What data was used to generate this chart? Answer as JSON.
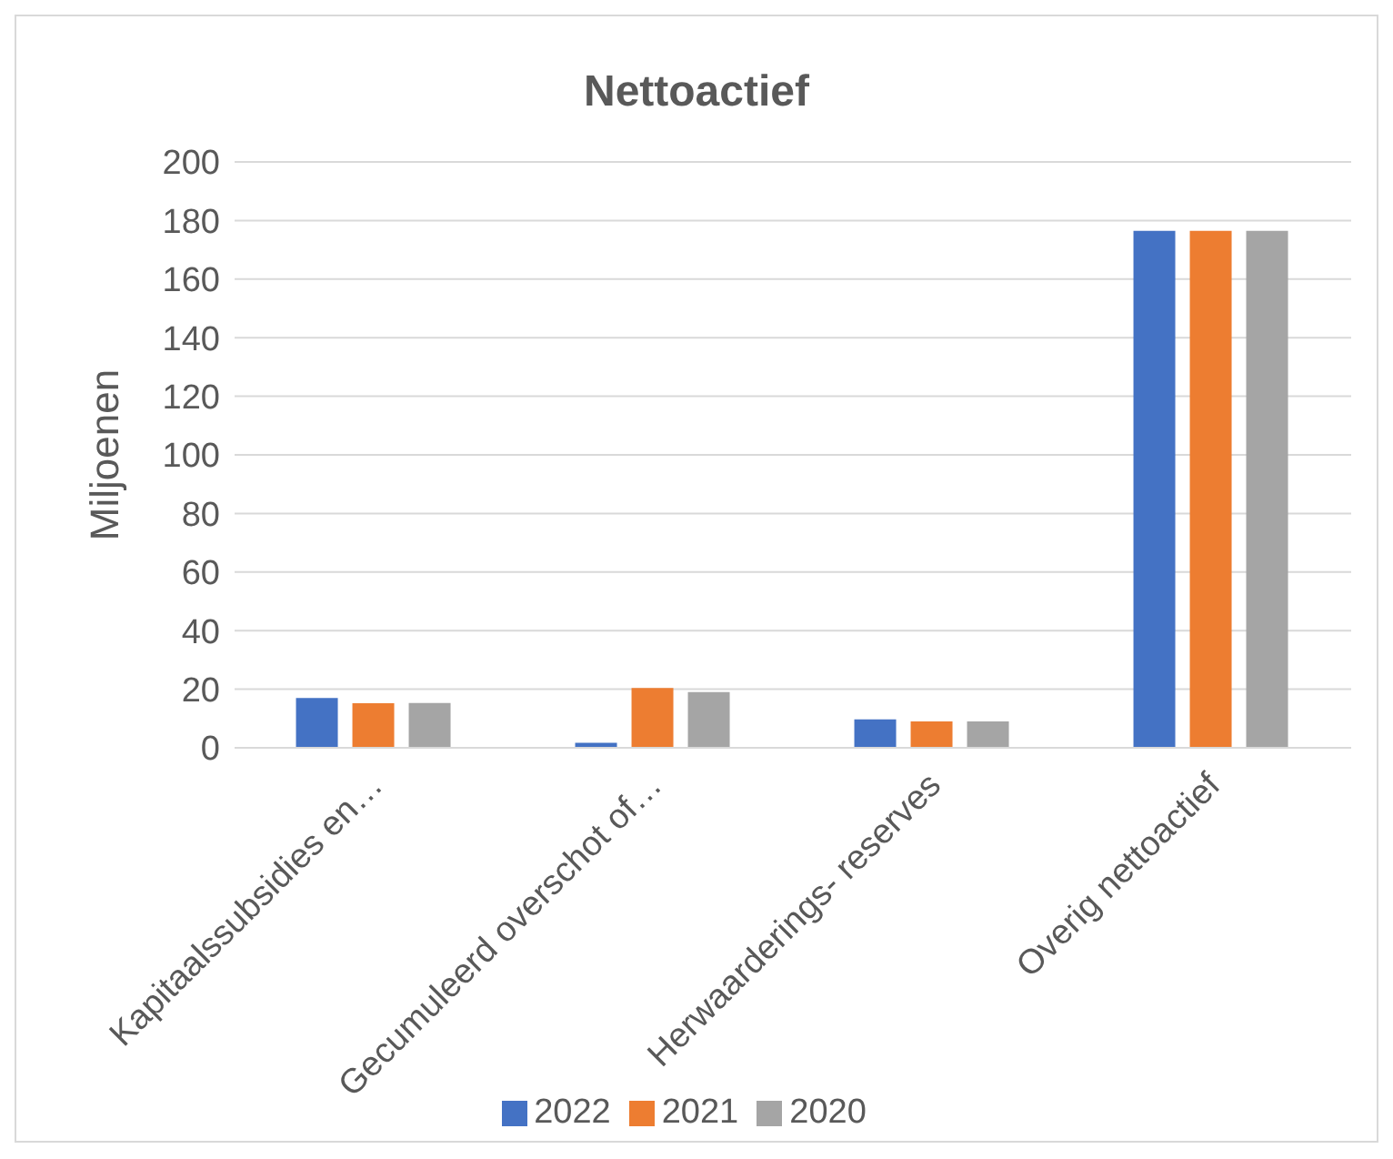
{
  "chart_data": {
    "type": "bar",
    "title": "Nettoactief",
    "ylabel": "Miljoenen",
    "categories": [
      "Kapitaalssubsidies en…",
      "Gecumuleerd overschot of…",
      "Herwaarderings- reserves",
      "Overig nettoactief"
    ],
    "series": [
      {
        "name": "2022",
        "color": "#4472c4",
        "values": [
          17,
          1.7,
          9.7,
          176.5
        ]
      },
      {
        "name": "2021",
        "color": "#ed7d31",
        "values": [
          15.2,
          20.4,
          9,
          176.5
        ]
      },
      {
        "name": "2020",
        "color": "#a5a5a5",
        "values": [
          15.3,
          19,
          9,
          176.5
        ]
      }
    ],
    "ylim": [
      0,
      200
    ],
    "yticks": [
      0,
      20,
      40,
      60,
      80,
      100,
      120,
      140,
      160,
      180,
      200
    ],
    "grid": "y",
    "legend": "bottom"
  }
}
